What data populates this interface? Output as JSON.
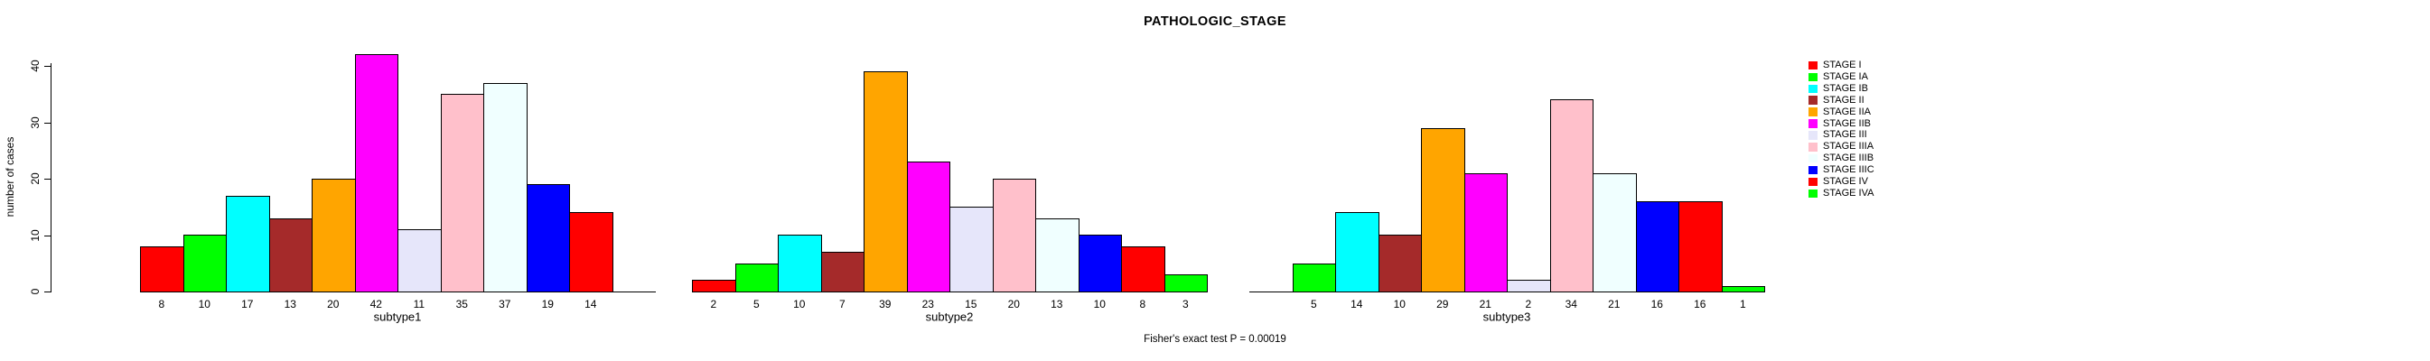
{
  "title": "PATHOLOGIC_STAGE",
  "footer": "Fisher's exact test P = 0.00019",
  "chart_data": {
    "type": "bar",
    "title": "PATHOLOGIC_STAGE",
    "ylabel": "number of cases",
    "ylim": [
      0,
      44
    ],
    "yticks": [
      0,
      10,
      20,
      30,
      40
    ],
    "grid": false,
    "legend_position": "right",
    "categories": [
      "STAGE I",
      "STAGE IA",
      "STAGE IB",
      "STAGE II",
      "STAGE IIA",
      "STAGE IIB",
      "STAGE III",
      "STAGE IIIA",
      "STAGE IIIB",
      "STAGE IIIC",
      "STAGE IV",
      "STAGE IVA"
    ],
    "palette": [
      "#FF0000",
      "#00FF00",
      "#00FFFF",
      "#A52A2A",
      "#FFA500",
      "#FF00FF",
      "#E6E6FA",
      "#FFC0CB",
      "#F0FFFF",
      "#0000FF",
      "#FF0000",
      "#00FF00"
    ],
    "series": [
      {
        "name": "subtype1",
        "values": [
          8,
          10,
          17,
          13,
          20,
          42,
          11,
          35,
          37,
          19,
          14,
          null
        ]
      },
      {
        "name": "subtype2",
        "values": [
          2,
          5,
          10,
          7,
          39,
          23,
          15,
          20,
          13,
          10,
          8,
          3
        ]
      },
      {
        "name": "subtype3",
        "values": [
          null,
          5,
          14,
          10,
          29,
          21,
          2,
          34,
          21,
          16,
          16,
          1
        ]
      }
    ],
    "annotation": "Fisher's exact test P = 0.00019"
  },
  "legend": {
    "entries": [
      {
        "label": "STAGE I",
        "color": "#FF0000"
      },
      {
        "label": "STAGE IA",
        "color": "#00FF00"
      },
      {
        "label": "STAGE IB",
        "color": "#00FFFF"
      },
      {
        "label": "STAGE II",
        "color": "#A52A2A"
      },
      {
        "label": "STAGE IIA",
        "color": "#FFA500"
      },
      {
        "label": "STAGE IIB",
        "color": "#FF00FF"
      },
      {
        "label": "STAGE III",
        "color": "#E6E6FA"
      },
      {
        "label": "STAGE IIIA",
        "color": "#FFC0CB"
      },
      {
        "label": "STAGE IIIB",
        "color": "#F0FFFF"
      },
      {
        "label": "STAGE IIIC",
        "color": "#0000FF"
      },
      {
        "label": "STAGE IV",
        "color": "#FF0000"
      },
      {
        "label": "STAGE IVA",
        "color": "#00FF00"
      }
    ]
  }
}
